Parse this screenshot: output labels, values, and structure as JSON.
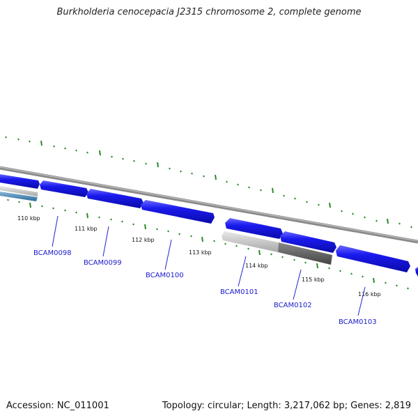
{
  "title": "Burkholderia cenocepacia J2315 chromosome 2, complete genome",
  "footer": {
    "accession": "Accession: NC_011001",
    "summary": "Topology: circular; Length: 3,217,062 bp; Genes: 2,819"
  },
  "colors": {
    "backbone": "#8a8a8a",
    "forward_gene": "#1a1aee",
    "reverse_gene_light": "#c8c8c8",
    "reverse_gene_dark": "#666666",
    "tick": "#2a8a2a",
    "label_link": "#2222cc"
  },
  "ticks": [
    {
      "label": "110 kbp"
    },
    {
      "label": "111 kbp"
    },
    {
      "label": "112 kbp"
    },
    {
      "label": "113 kbp"
    },
    {
      "label": "114 kbp"
    },
    {
      "label": "115 kbp"
    },
    {
      "label": "116 kbp"
    }
  ],
  "genes": [
    {
      "label": "BCAM0098"
    },
    {
      "label": "BCAM0099"
    },
    {
      "label": "BCAM0100"
    },
    {
      "label": "BCAM0101"
    },
    {
      "label": "BCAM0102"
    },
    {
      "label": "BCAM0103"
    }
  ]
}
